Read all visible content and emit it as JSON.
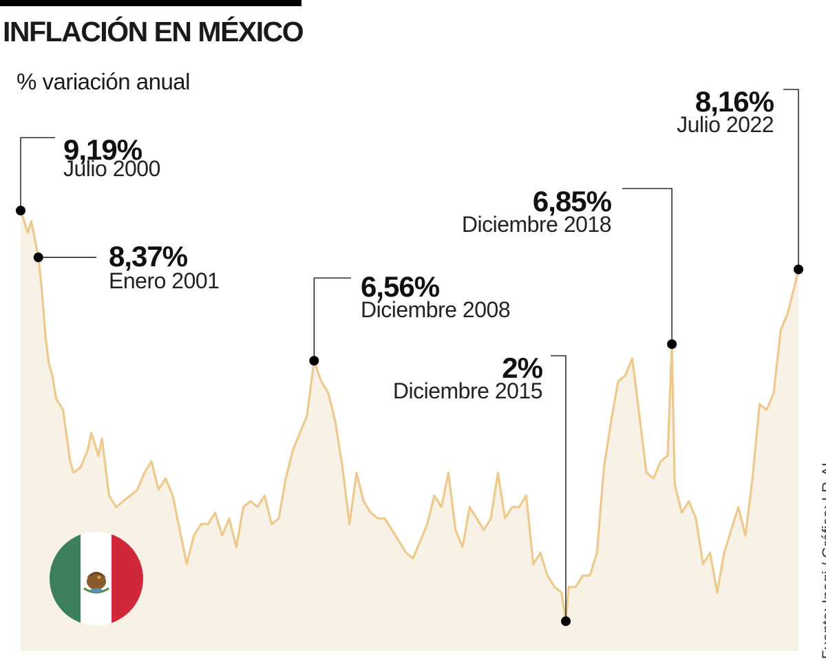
{
  "title": "INFLACIÓN EN MÉXICO",
  "subtitle": "% variación anual",
  "source": "Fuente: Inegi / Gráfico: LR-AL",
  "colors": {
    "line": "#ecc98d",
    "area": "#f8f1e6",
    "marker": "#000000",
    "flag_green": "#3d7f5c",
    "flag_red": "#d0283a"
  },
  "icons": {
    "flag": "mexico-flag-icon"
  },
  "chart_data": {
    "type": "area",
    "xlim": [
      2000.5,
      2022.5
    ],
    "ylim": [
      0.9,
      9.3
    ],
    "x": [
      2000.5,
      2000.6,
      2000.7,
      2000.8,
      2000.9,
      2001.0,
      2001.1,
      2001.2,
      2001.3,
      2001.4,
      2001.5,
      2001.7,
      2001.9,
      2002.0,
      2002.2,
      2002.4,
      2002.5,
      2002.7,
      2002.8,
      2003.0,
      2003.2,
      2003.4,
      2003.6,
      2003.8,
      2004.0,
      2004.2,
      2004.4,
      2004.6,
      2004.8,
      2005.0,
      2005.2,
      2005.4,
      2005.6,
      2005.8,
      2006.0,
      2006.2,
      2006.4,
      2006.6,
      2006.8,
      2007.0,
      2007.2,
      2007.4,
      2007.6,
      2007.8,
      2008.0,
      2008.2,
      2008.4,
      2008.6,
      2008.8,
      2009.0,
      2009.2,
      2009.4,
      2009.6,
      2009.8,
      2010.0,
      2010.2,
      2010.4,
      2010.6,
      2010.8,
      2011.0,
      2011.2,
      2011.4,
      2011.6,
      2011.8,
      2012.0,
      2012.2,
      2012.4,
      2012.6,
      2012.8,
      2013.0,
      2013.2,
      2013.4,
      2013.6,
      2013.8,
      2014.0,
      2014.2,
      2014.4,
      2014.6,
      2014.8,
      2015.0,
      2015.2,
      2015.4,
      2015.6,
      2015.8,
      2015.92,
      2016.0,
      2016.2,
      2016.4,
      2016.6,
      2016.8,
      2017.0,
      2017.2,
      2017.4,
      2017.6,
      2017.8,
      2018.0,
      2018.2,
      2018.4,
      2018.6,
      2018.8,
      2018.92,
      2019.0,
      2019.2,
      2019.4,
      2019.6,
      2019.8,
      2020.0,
      2020.2,
      2020.4,
      2020.6,
      2020.8,
      2021.0,
      2021.2,
      2021.4,
      2021.6,
      2021.8,
      2022.0,
      2022.2,
      2022.4,
      2022.5
    ],
    "values": [
      9.19,
      9.0,
      8.8,
      9.0,
      8.7,
      8.37,
      7.8,
      7.0,
      6.5,
      6.3,
      5.9,
      5.7,
      4.8,
      4.6,
      4.7,
      5.0,
      5.3,
      4.9,
      5.2,
      4.2,
      4.0,
      4.1,
      4.2,
      4.3,
      4.6,
      4.8,
      4.3,
      4.5,
      4.2,
      3.6,
      3.0,
      3.5,
      3.7,
      3.7,
      3.9,
      3.5,
      3.8,
      3.3,
      4.0,
      4.1,
      4.0,
      4.2,
      3.7,
      3.8,
      4.5,
      5.0,
      5.3,
      5.6,
      6.56,
      6.2,
      6.0,
      5.5,
      4.7,
      3.7,
      4.6,
      4.1,
      3.9,
      3.8,
      3.8,
      3.6,
      3.4,
      3.2,
      3.1,
      3.4,
      3.7,
      4.2,
      4.0,
      4.6,
      3.6,
      3.3,
      4.0,
      3.8,
      3.6,
      3.8,
      4.6,
      3.8,
      4.0,
      4.0,
      4.2,
      3.0,
      3.2,
      2.8,
      2.6,
      2.5,
      2.0,
      2.6,
      2.6,
      2.8,
      2.8,
      3.2,
      4.7,
      5.5,
      6.2,
      6.3,
      6.6,
      5.6,
      4.6,
      4.5,
      4.8,
      4.9,
      6.85,
      4.4,
      3.9,
      4.1,
      3.8,
      3.0,
      3.2,
      2.5,
      3.2,
      3.6,
      4.0,
      3.5,
      4.5,
      5.8,
      5.7,
      6.0,
      7.1,
      7.4,
      7.9,
      8.16
    ],
    "annotations": [
      {
        "x": 2000.5,
        "value": 9.19,
        "label": "9,19%",
        "date": "Julio 2000"
      },
      {
        "x": 2001.0,
        "value": 8.37,
        "label": "8,37%",
        "date": "Enero 2001"
      },
      {
        "x": 2008.8,
        "value": 6.56,
        "label": "6,56%",
        "date": "Diciembre 2008"
      },
      {
        "x": 2015.92,
        "value": 2.0,
        "label": "2%",
        "date": "Diciembre 2015"
      },
      {
        "x": 2018.92,
        "value": 6.85,
        "label": "6,85%",
        "date": "Diciembre 2018"
      },
      {
        "x": 2022.5,
        "value": 8.16,
        "label": "8,16%",
        "date": "Julio 2022"
      }
    ],
    "grid": false,
    "legend": "none"
  }
}
